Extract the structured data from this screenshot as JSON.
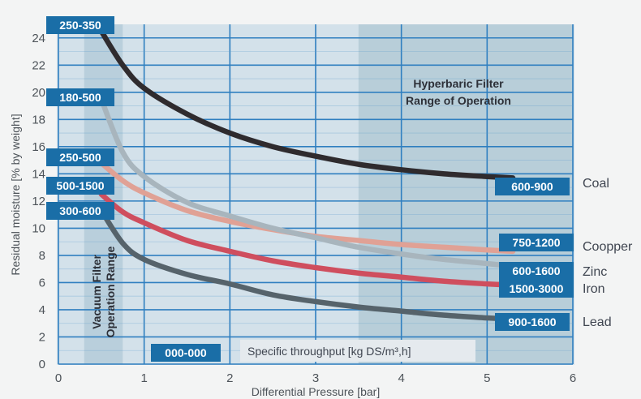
{
  "chart_data": {
    "type": "line",
    "xlabel": "Differential Pressure [bar]",
    "ylabel": "Residual moisture [% by weight]",
    "xlim": [
      0,
      6
    ],
    "ylim": [
      0,
      25
    ],
    "x_ticks": [
      "0",
      "1",
      "2",
      "3",
      "4",
      "5",
      "6"
    ],
    "y_ticks": [
      "0",
      "2",
      "4",
      "6",
      "8",
      "10",
      "12",
      "14",
      "16",
      "18",
      "20",
      "22",
      "24"
    ],
    "grid": true,
    "throughput_label": "Specific throughput [kg DS/m³,h]",
    "zones": {
      "vacuum": {
        "label_line1": "Vacuum Filter",
        "label_line2": "Operation Range",
        "x_range": [
          0.3,
          0.75
        ]
      },
      "hyperbaric": {
        "label_line1": "Hyperbaric Filter",
        "label_line2": "Range of Operation",
        "x_range": [
          3.5,
          6
        ]
      }
    },
    "axis_box_label": "000-000",
    "series": [
      {
        "name": "Coal",
        "start_label": "250-350",
        "end_label": "600-900",
        "color": "#2f2b2e",
        "x": [
          0.5,
          0.75,
          1.0,
          1.5,
          2.0,
          2.5,
          3.0,
          3.5,
          4.0,
          4.5,
          5.0,
          5.3
        ],
        "y": [
          24.5,
          22.0,
          20.3,
          18.4,
          17.0,
          16.0,
          15.3,
          14.7,
          14.3,
          14.0,
          13.8,
          13.7
        ]
      },
      {
        "name": "Coopper",
        "start_label": "250-500",
        "end_label": "750-1200",
        "color": "#e0a195",
        "x": [
          0.5,
          0.75,
          1.0,
          1.5,
          2.0,
          2.5,
          3.0,
          3.5,
          4.0,
          4.5,
          5.0,
          5.3
        ],
        "y": [
          14.8,
          13.5,
          12.6,
          11.3,
          10.5,
          9.9,
          9.4,
          9.1,
          8.8,
          8.6,
          8.4,
          8.3
        ]
      },
      {
        "name": "Zinc",
        "start_label": "180-500",
        "end_label": "600-1600",
        "color": "#a8b5bd",
        "x": [
          0.5,
          0.75,
          1.0,
          1.5,
          2.0,
          2.5,
          3.0,
          3.5,
          4.0,
          4.5,
          5.0,
          5.3
        ],
        "y": [
          19.5,
          15.6,
          13.8,
          11.9,
          10.9,
          10.0,
          9.3,
          8.6,
          8.1,
          7.7,
          7.4,
          7.2
        ]
      },
      {
        "name": "Iron",
        "start_label": "500-1500",
        "end_label": "1500-3000",
        "color": "#cf4e5e",
        "x": [
          0.5,
          0.75,
          1.0,
          1.5,
          2.0,
          2.5,
          3.0,
          3.5,
          4.0,
          4.5,
          5.0,
          5.3
        ],
        "y": [
          12.5,
          11.2,
          10.4,
          9.1,
          8.3,
          7.6,
          7.1,
          6.7,
          6.4,
          6.1,
          5.9,
          5.8
        ]
      },
      {
        "name": "Lead",
        "start_label": "300-600",
        "end_label": "900-1600",
        "color": "#56636b",
        "x": [
          0.5,
          0.75,
          1.0,
          1.5,
          2.0,
          2.5,
          3.0,
          3.5,
          4.0,
          4.5,
          5.0,
          5.3
        ],
        "y": [
          11.3,
          8.9,
          7.7,
          6.6,
          5.9,
          5.1,
          4.6,
          4.2,
          3.9,
          3.6,
          3.4,
          3.3
        ]
      }
    ]
  }
}
